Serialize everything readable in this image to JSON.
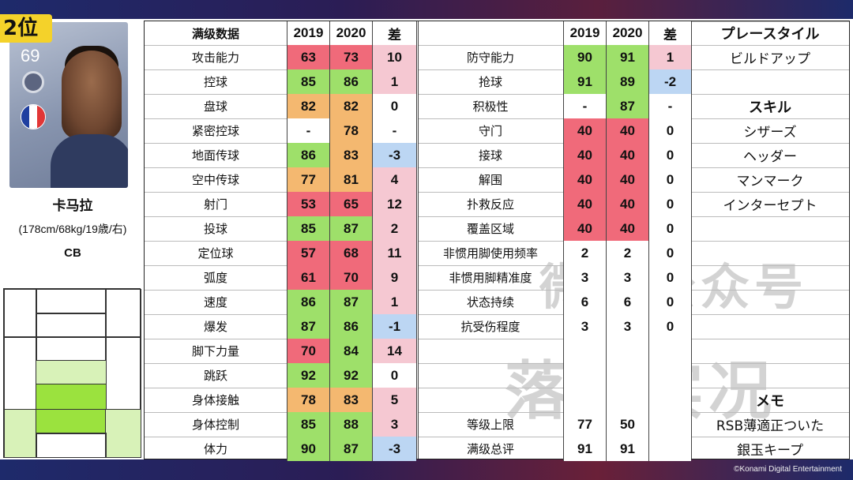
{
  "header": {
    "rank": "2位"
  },
  "copyright": "©Konami Digital Entertainment",
  "player": {
    "rating": "69",
    "name": "卡马拉",
    "info": "(178cm/68kg/19歳/右)",
    "position": "CB",
    "flag_colors": [
      "#1f3fa0",
      "#ffffff",
      "#e23636"
    ]
  },
  "pitch_heatmap": {
    "levels": [
      "none",
      "low",
      "medium",
      "high"
    ],
    "colors": {
      "low": "#d8f2b8",
      "medium": "#b7ea6c",
      "high": "#9be23e"
    }
  },
  "left_table": {
    "headers": {
      "label": "满级数据",
      "y2019": "2019",
      "y2020": "2020",
      "diff": "差"
    },
    "rows": [
      {
        "label": "攻击能力",
        "v2019": "63",
        "v2020": "73",
        "diff": "10",
        "c2019": "red",
        "c2020": "red",
        "cdiff": "pink"
      },
      {
        "label": "控球",
        "v2019": "85",
        "v2020": "86",
        "diff": "1",
        "c2019": "green",
        "c2020": "green",
        "cdiff": "pink"
      },
      {
        "label": "盘球",
        "v2019": "82",
        "v2020": "82",
        "diff": "0",
        "c2019": "orange",
        "c2020": "orange",
        "cdiff": "white"
      },
      {
        "label": "紧密控球",
        "v2019": "-",
        "v2020": "78",
        "diff": "-",
        "c2019": "white",
        "c2020": "orange",
        "cdiff": "white"
      },
      {
        "label": "地面传球",
        "v2019": "86",
        "v2020": "83",
        "diff": "-3",
        "c2019": "green",
        "c2020": "orange",
        "cdiff": "blue"
      },
      {
        "label": "空中传球",
        "v2019": "77",
        "v2020": "81",
        "diff": "4",
        "c2019": "orange",
        "c2020": "orange",
        "cdiff": "pink"
      },
      {
        "label": "射门",
        "v2019": "53",
        "v2020": "65",
        "diff": "12",
        "c2019": "red",
        "c2020": "red",
        "cdiff": "pink"
      },
      {
        "label": "投球",
        "v2019": "85",
        "v2020": "87",
        "diff": "2",
        "c2019": "green",
        "c2020": "green",
        "cdiff": "pink"
      },
      {
        "label": "定位球",
        "v2019": "57",
        "v2020": "68",
        "diff": "11",
        "c2019": "red",
        "c2020": "red",
        "cdiff": "pink"
      },
      {
        "label": "弧度",
        "v2019": "61",
        "v2020": "70",
        "diff": "9",
        "c2019": "red",
        "c2020": "red",
        "cdiff": "pink"
      },
      {
        "label": "速度",
        "v2019": "86",
        "v2020": "87",
        "diff": "1",
        "c2019": "green",
        "c2020": "green",
        "cdiff": "pink"
      },
      {
        "label": "爆发",
        "v2019": "87",
        "v2020": "86",
        "diff": "-1",
        "c2019": "green",
        "c2020": "green",
        "cdiff": "blue"
      },
      {
        "label": "脚下力量",
        "v2019": "70",
        "v2020": "84",
        "diff": "14",
        "c2019": "red",
        "c2020": "green",
        "cdiff": "pink"
      },
      {
        "label": "跳跃",
        "v2019": "92",
        "v2020": "92",
        "diff": "0",
        "c2019": "green",
        "c2020": "green",
        "cdiff": "white"
      },
      {
        "label": "身体接触",
        "v2019": "78",
        "v2020": "83",
        "diff": "5",
        "c2019": "orange",
        "c2020": "orange",
        "cdiff": "pink"
      },
      {
        "label": "身体控制",
        "v2019": "85",
        "v2020": "88",
        "diff": "3",
        "c2019": "green",
        "c2020": "green",
        "cdiff": "pink"
      },
      {
        "label": "体力",
        "v2019": "90",
        "v2020": "87",
        "diff": "-3",
        "c2019": "green",
        "c2020": "green",
        "cdiff": "blue"
      }
    ]
  },
  "right_table": {
    "headers": {
      "y2019": "2019",
      "y2020": "2020",
      "diff": "差"
    },
    "rows": [
      {
        "label": "防守能力",
        "v2019": "90",
        "v2020": "91",
        "diff": "1",
        "c2019": "green",
        "c2020": "green",
        "cdiff": "pink"
      },
      {
        "label": "抢球",
        "v2019": "91",
        "v2020": "89",
        "diff": "-2",
        "c2019": "green",
        "c2020": "green",
        "cdiff": "blue"
      },
      {
        "label": "积极性",
        "v2019": "-",
        "v2020": "87",
        "diff": "-",
        "c2019": "white",
        "c2020": "green",
        "cdiff": "white"
      },
      {
        "label": "守门",
        "v2019": "40",
        "v2020": "40",
        "diff": "0",
        "c2019": "red",
        "c2020": "red",
        "cdiff": "white"
      },
      {
        "label": "接球",
        "v2019": "40",
        "v2020": "40",
        "diff": "0",
        "c2019": "red",
        "c2020": "red",
        "cdiff": "white"
      },
      {
        "label": "解围",
        "v2019": "40",
        "v2020": "40",
        "diff": "0",
        "c2019": "red",
        "c2020": "red",
        "cdiff": "white"
      },
      {
        "label": "扑救反应",
        "v2019": "40",
        "v2020": "40",
        "diff": "0",
        "c2019": "red",
        "c2020": "red",
        "cdiff": "white"
      },
      {
        "label": "覆盖区域",
        "v2019": "40",
        "v2020": "40",
        "diff": "0",
        "c2019": "red",
        "c2020": "red",
        "cdiff": "white"
      },
      {
        "label": "非惯用脚使用频率",
        "v2019": "2",
        "v2020": "2",
        "diff": "0",
        "c2019": "white",
        "c2020": "white",
        "cdiff": "white"
      },
      {
        "label": "非惯用脚精准度",
        "v2019": "3",
        "v2020": "3",
        "diff": "0",
        "c2019": "white",
        "c2020": "white",
        "cdiff": "white"
      },
      {
        "label": "状态持续",
        "v2019": "6",
        "v2020": "6",
        "diff": "0",
        "c2019": "white",
        "c2020": "white",
        "cdiff": "white"
      },
      {
        "label": "抗受伤程度",
        "v2019": "3",
        "v2020": "3",
        "diff": "0",
        "c2019": "white",
        "c2020": "white",
        "cdiff": "white"
      },
      {
        "label": "",
        "v2019": "",
        "v2020": "",
        "diff": "",
        "c2019": "white",
        "c2020": "white",
        "cdiff": "white"
      },
      {
        "label": "",
        "v2019": "",
        "v2020": "",
        "diff": "",
        "c2019": "white",
        "c2020": "white",
        "cdiff": "white"
      },
      {
        "label": "",
        "v2019": "",
        "v2020": "",
        "diff": "",
        "c2019": "white",
        "c2020": "white",
        "cdiff": "white"
      },
      {
        "label": "等级上限",
        "v2019": "77",
        "v2020": "50",
        "diff": "",
        "c2019": "white",
        "c2020": "white",
        "cdiff": "white"
      },
      {
        "label": "满级总评",
        "v2019": "91",
        "v2020": "91",
        "diff": "",
        "c2019": "white",
        "c2020": "white",
        "cdiff": "white"
      }
    ]
  },
  "side_column": {
    "cells": [
      {
        "text": "プレースタイル",
        "style": "jp-bold"
      },
      {
        "text": "ビルドアップ",
        "style": "jp"
      },
      {
        "text": "",
        "style": "jp"
      },
      {
        "text": "スキル",
        "style": "jp-bold"
      },
      {
        "text": "シザーズ",
        "style": "jp"
      },
      {
        "text": "ヘッダー",
        "style": "jp"
      },
      {
        "text": "マンマーク",
        "style": "jp"
      },
      {
        "text": "インターセプト",
        "style": "jp"
      },
      {
        "text": "",
        "style": "jp"
      },
      {
        "text": "",
        "style": "jp"
      },
      {
        "text": "",
        "style": "jp"
      },
      {
        "text": "",
        "style": "jp"
      },
      {
        "text": "",
        "style": "jp"
      },
      {
        "text": "",
        "style": "jp"
      },
      {
        "text": "",
        "style": "jp"
      },
      {
        "text": "メモ",
        "style": "jp-bold"
      },
      {
        "text": "RSB薄適正ついた",
        "style": "jp"
      },
      {
        "text": "銀玉キープ",
        "style": "jp"
      }
    ]
  },
  "watermarks": [
    "微信公众号",
    "落玩实况"
  ]
}
